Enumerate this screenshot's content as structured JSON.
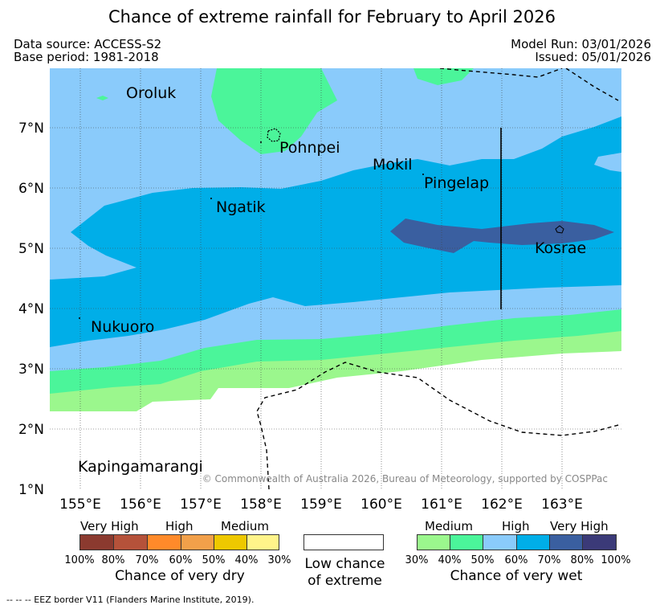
{
  "title": "Chance of extreme rainfall for February to April 2026",
  "meta": {
    "data_source": "Data source: ACCESS-S2",
    "base_period": "Base period: 1981-2018",
    "model_run": "Model Run: 03/01/2026",
    "issued": "Issued: 05/01/2026"
  },
  "map": {
    "lat_range": [
      1,
      8
    ],
    "lon_range": [
      154.5,
      164
    ],
    "y_ticks": [
      "1°N",
      "2°N",
      "3°N",
      "4°N",
      "5°N",
      "6°N",
      "7°N"
    ],
    "x_ticks": [
      "155°E",
      "156°E",
      "157°E",
      "158°E",
      "159°E",
      "160°E",
      "161°E",
      "162°E",
      "163°E"
    ],
    "places": {
      "oroluk": "Oroluk",
      "pohnpei": "Pohnpei",
      "mokil": "Mokil",
      "pingelap": "Pingelap",
      "ngatik": "Ngatik",
      "kosrae": "Kosrae",
      "nukuoro": "Nukuoro",
      "kapingamarangi": "Kapingamarangi"
    },
    "copyright": "© Commonwealth of Australia 2026, Bureau of Meteorology, supported by COSPPac"
  },
  "legend": {
    "dry": {
      "headers": [
        "Very High",
        "High",
        "Medium"
      ],
      "percents": [
        "100%",
        "80%",
        "70%",
        "60%",
        "50%",
        "40%",
        "30%"
      ],
      "colors": [
        "#8b3a2f",
        "#b5523a",
        "#ff8a2a",
        "#f2a04a",
        "#eec800",
        "#fff48a"
      ],
      "caption": "Chance of very dry"
    },
    "low": {
      "caption_line1": "Low chance",
      "caption_line2": "of extreme"
    },
    "wet": {
      "headers": [
        "Medium",
        "High",
        "Very High"
      ],
      "percents": [
        "30%",
        "40%",
        "50%",
        "60%",
        "70%",
        "80%",
        "100%"
      ],
      "colors": [
        "#9bf78d",
        "#4bf59a",
        "#8acbfb",
        "#00aee8",
        "#3a5fa0",
        "#3b3a78"
      ],
      "caption": "Chance of very wet"
    }
  },
  "footer": "-- -- -- EEZ border V11 (Flanders Marine Institute, 2019)."
}
